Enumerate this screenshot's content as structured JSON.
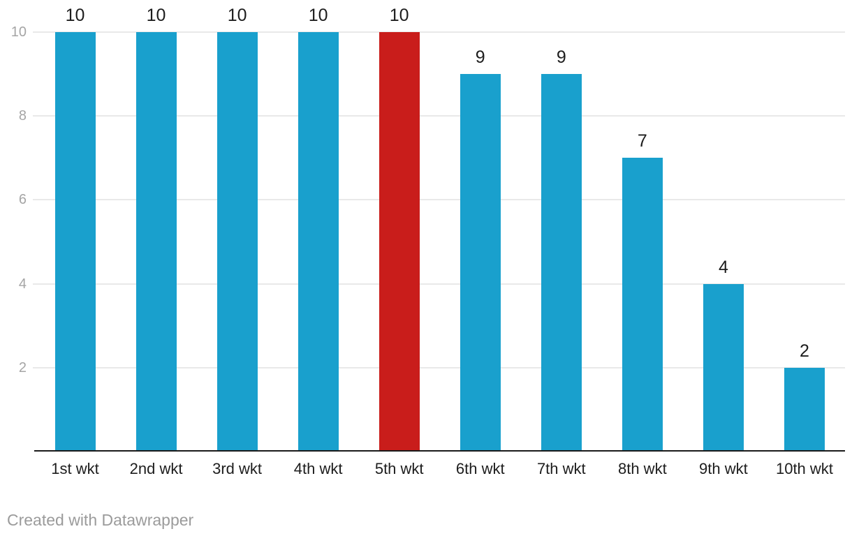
{
  "chart_data": {
    "type": "bar",
    "categories": [
      "1st wkt",
      "2nd wkt",
      "3rd wkt",
      "4th wkt",
      "5th wkt",
      "6th wkt",
      "7th wkt",
      "8th wkt",
      "9th wkt",
      "10th wkt"
    ],
    "values": [
      10,
      10,
      10,
      10,
      10,
      9,
      9,
      7,
      4,
      2
    ],
    "value_labels": [
      "10",
      "10",
      "10",
      "10",
      "10",
      "9",
      "9",
      "7",
      "4",
      "2"
    ],
    "highlighted_category": "5th wkt",
    "highlight_index": 4,
    "title": "",
    "xlabel": "",
    "ylabel": "",
    "ylim": [
      0,
      10
    ],
    "yticks": [
      2,
      4,
      6,
      8,
      10
    ],
    "grid": "horizontal",
    "legend": "none"
  },
  "colors": {
    "bar_default": "#19a0cd",
    "bar_highlight": "#c91d1b",
    "gridline": "#e9e9e9",
    "axis_line": "#1a1a1a",
    "y_tick_label": "#a5a5a5",
    "label_text": "#1d1d1d",
    "credit_text": "#9b9b9b"
  },
  "footer": {
    "credit": "Created with Datawrapper"
  }
}
